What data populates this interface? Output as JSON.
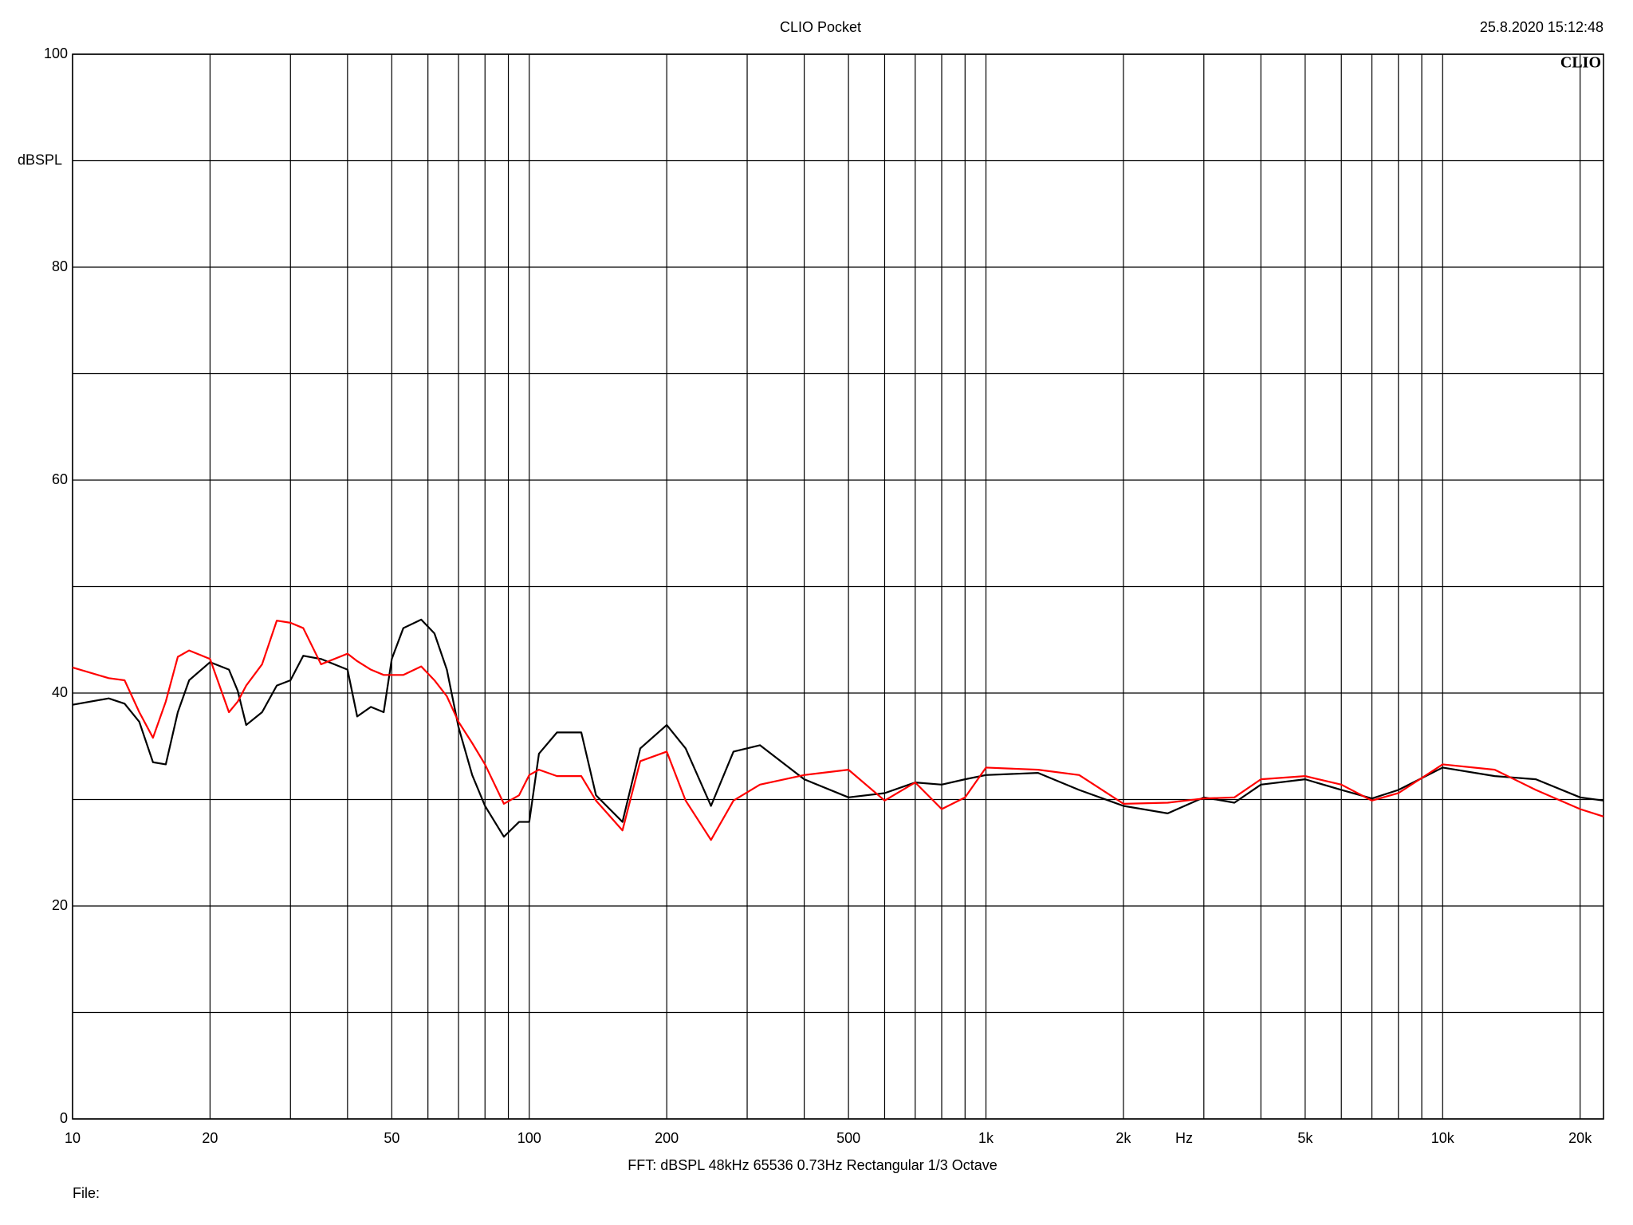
{
  "chart_data": {
    "type": "line",
    "title": "CLIO Pocket",
    "timestamp": "25.8.2020 15:12:48",
    "logo": "CLIO",
    "y_label": "dBSPL",
    "x_unit": "Hz",
    "footer": "FFT:  dBSPL  48kHz  65536  0.73Hz  Rectangular  1/3 Octave",
    "file_label": "File:",
    "log_x": true,
    "grid": true,
    "xlim": [
      10,
      22500
    ],
    "ylim": [
      0,
      100
    ],
    "xticks": [
      10,
      20,
      50,
      100,
      200,
      500,
      {
        "value": 1000,
        "label": "1k"
      },
      {
        "value": 2000,
        "label": "2k"
      },
      {
        "value": 5000,
        "label": "5k"
      },
      {
        "value": 10000,
        "label": "10k"
      },
      {
        "value": 20000,
        "label": "20k"
      }
    ],
    "minor_xticks": [
      30,
      40,
      60,
      70,
      80,
      90,
      300,
      400,
      600,
      700,
      800,
      900,
      3000,
      4000,
      6000,
      7000,
      8000,
      9000
    ],
    "yticks": [
      0,
      20,
      40,
      60,
      80,
      100
    ],
    "minor_yticks": [
      10,
      30,
      50,
      70,
      90
    ],
    "x": [
      10,
      12,
      13,
      14,
      15,
      16,
      17,
      18,
      20,
      22,
      23,
      24,
      26,
      28,
      30,
      32,
      35,
      40,
      42,
      45,
      48,
      50,
      53,
      58,
      62,
      66,
      70,
      75,
      80,
      88,
      95,
      100,
      105,
      115,
      130,
      140,
      160,
      175,
      200,
      220,
      250,
      280,
      320,
      400,
      500,
      600,
      700,
      800,
      900,
      1000,
      1300,
      1600,
      2000,
      2500,
      3000,
      3500,
      4000,
      5000,
      6000,
      7000,
      8000,
      10000,
      13000,
      16000,
      20000,
      22500
    ],
    "series": [
      {
        "color": "#000000",
        "values": [
          38.9,
          39.5,
          39,
          37.3,
          33.5,
          33.3,
          38.2,
          41.2,
          42.9,
          42.2,
          40.2,
          37,
          38.2,
          40.7,
          41.2,
          43.5,
          43.2,
          42.2,
          37.8,
          38.7,
          38.2,
          43.2,
          46.1,
          46.9,
          45.6,
          42.2,
          36.8,
          32.3,
          29.4,
          26.5,
          27.9,
          27.9,
          34.3,
          36.3,
          36.3,
          30.4,
          27.9,
          34.8,
          37,
          34.8,
          29.4,
          34.5,
          35.1,
          31.9,
          30.2,
          30.6,
          31.6,
          31.4,
          31.9,
          32.3,
          32.5,
          30.9,
          29.4,
          28.7,
          30.2,
          29.7,
          31.4,
          31.9,
          30.9,
          30.1,
          30.9,
          33,
          32.2,
          31.9,
          30.2,
          29.9
        ]
      },
      {
        "color": "#ff0000",
        "values": [
          42.4,
          41.4,
          41.2,
          38.2,
          35.8,
          39.2,
          43.4,
          44,
          43.2,
          38.2,
          39.2,
          40.7,
          42.7,
          46.8,
          46.6,
          46.1,
          42.7,
          43.7,
          43,
          42.2,
          41.7,
          41.7,
          41.7,
          42.5,
          41.2,
          39.7,
          37.3,
          35.3,
          33.3,
          29.6,
          30.4,
          32.3,
          32.8,
          32.2,
          32.2,
          29.9,
          27.1,
          33.6,
          34.5,
          29.9,
          26.2,
          29.9,
          31.4,
          32.3,
          32.8,
          29.9,
          31.6,
          29.1,
          30.2,
          33,
          32.8,
          32.3,
          29.6,
          29.7,
          30.1,
          30.2,
          31.9,
          32.2,
          31.4,
          29.9,
          30.6,
          33.3,
          32.8,
          30.9,
          29.1,
          28.4
        ]
      }
    ]
  }
}
